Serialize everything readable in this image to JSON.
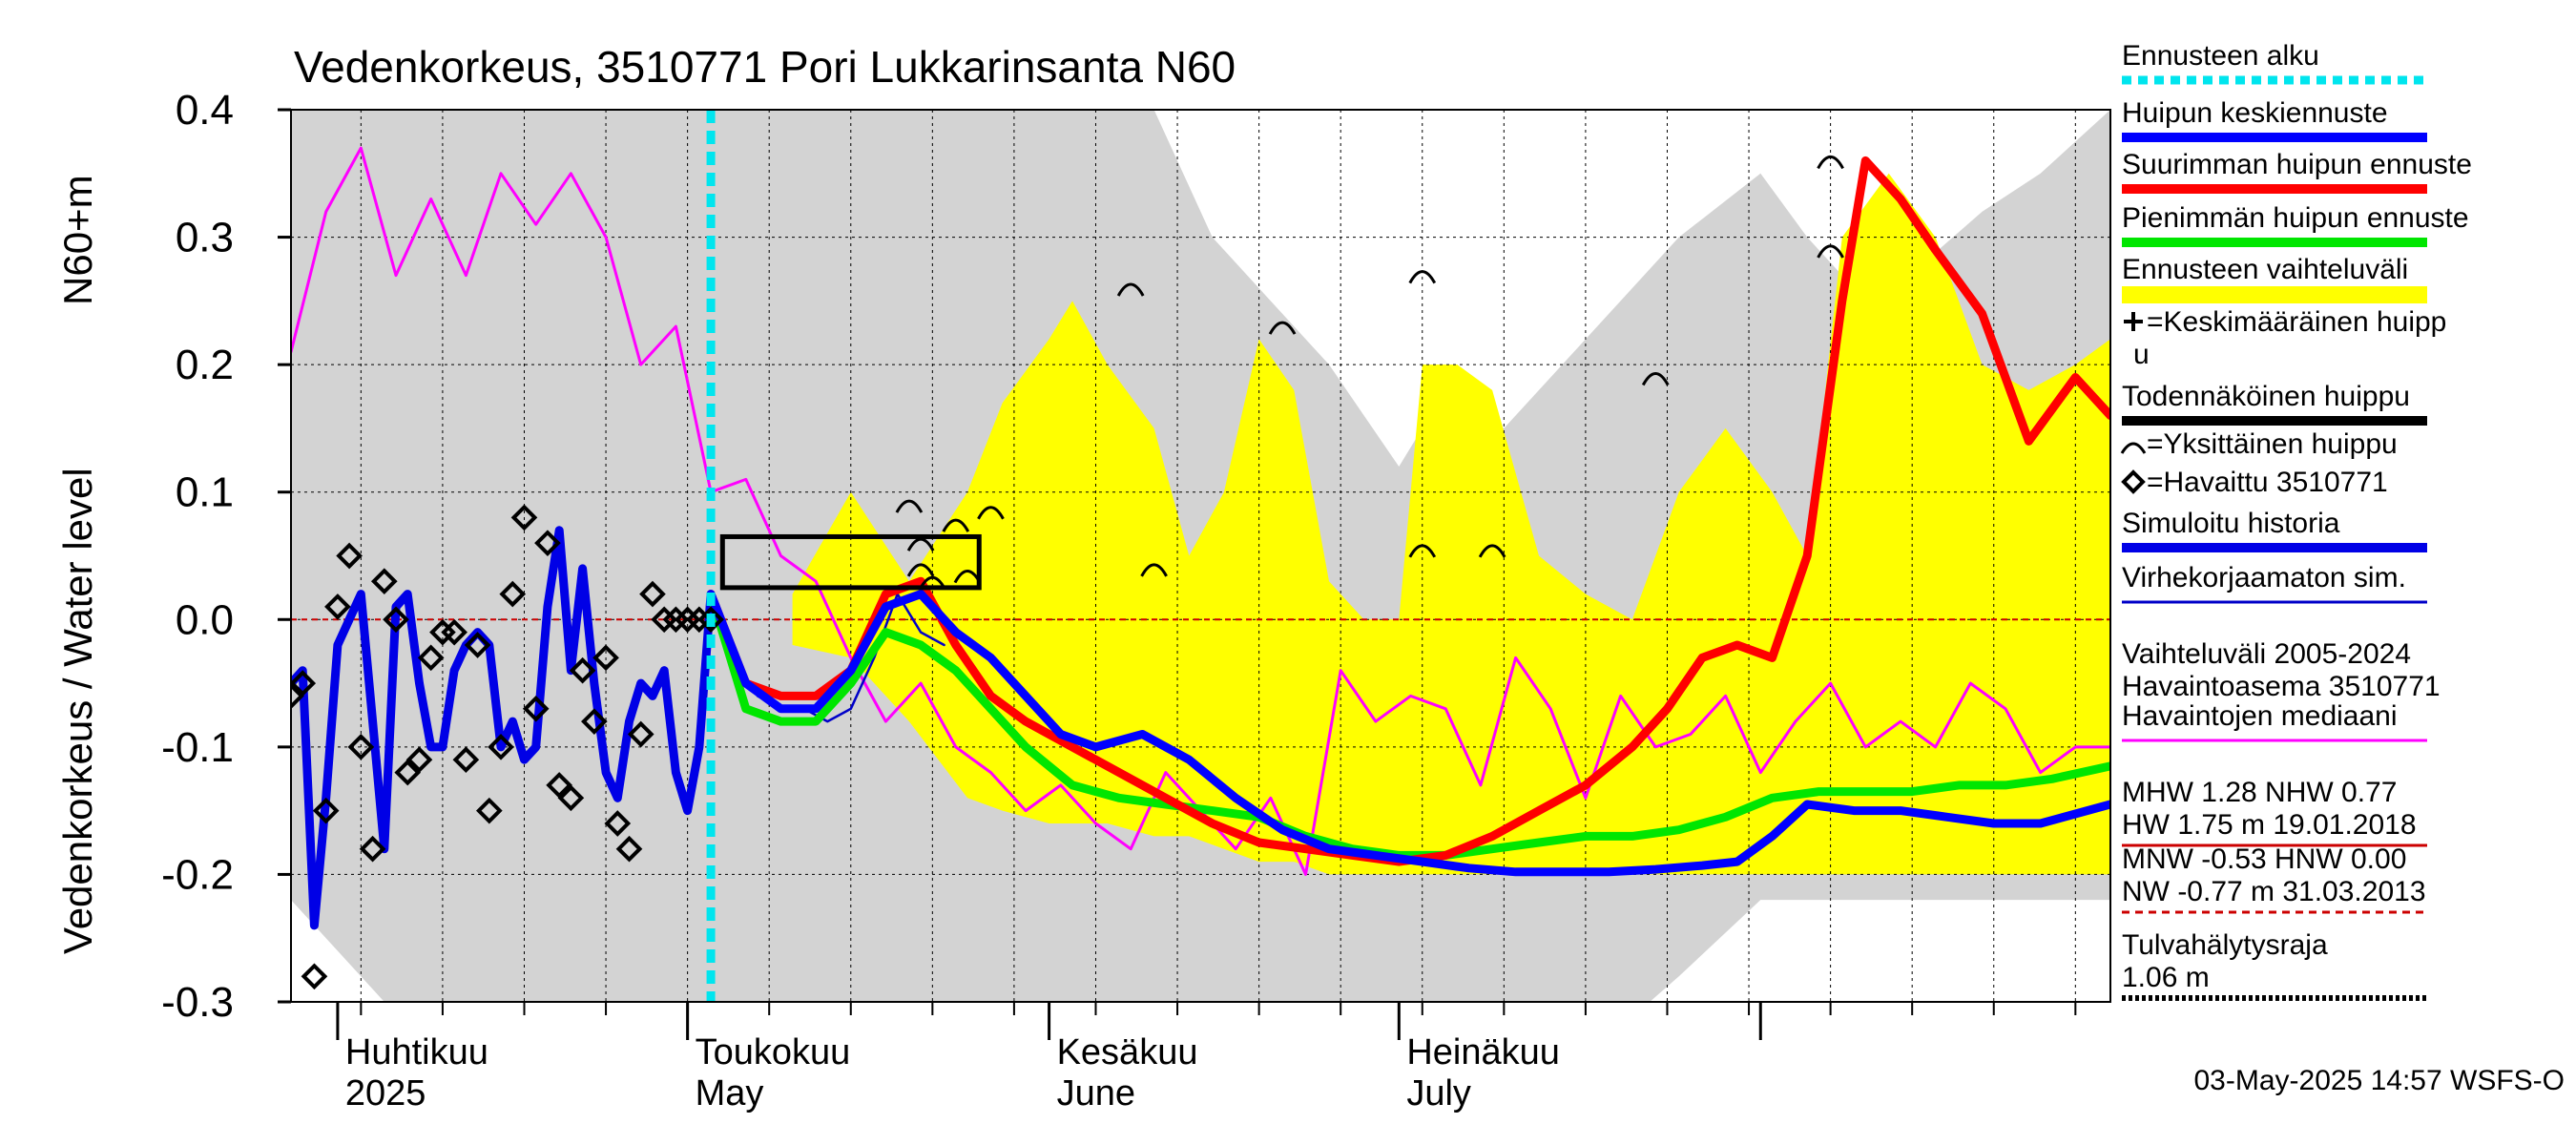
{
  "chart_data": {
    "type": "line",
    "title": "Vedenkorkeus, 3510771 Pori Lukkarinsanta N60",
    "ylabel_outer": "Vedenkorkeus / Water level",
    "ylabel_inner": "N60+m",
    "ylim": [
      -0.3,
      0.4
    ],
    "yticks": [
      "0.4",
      "0.3",
      "0.2",
      "0.1",
      "0.0",
      "-0.1",
      "-0.2",
      "-0.3"
    ],
    "ytick_values": [
      0.4,
      0.3,
      0.2,
      0.1,
      0.0,
      -0.1,
      -0.2,
      -0.3
    ],
    "xlim": [
      "2025-03-28",
      "2025-08-31"
    ],
    "grid": "on",
    "months": [
      {
        "line1": "Huhtikuu",
        "line2": "2025",
        "date": "2025-04-01"
      },
      {
        "line1": "Toukokuu",
        "line2": "May",
        "date": "2025-05-01"
      },
      {
        "line1": "Kesäkuu",
        "line2": "June",
        "date": "2025-06-01"
      },
      {
        "line1": "Heinäkuu",
        "line2": "July",
        "date": "2025-07-01"
      }
    ],
    "forecast_start": "2025-05-03",
    "zero_reference": 0.0,
    "variation_band_2005_2024": {
      "x": [
        "2025-03-28",
        "2025-04-05",
        "2025-04-15",
        "2025-04-25",
        "2025-05-05",
        "2025-05-15",
        "2025-05-25",
        "2025-06-05",
        "2025-06-10",
        "2025-06-15",
        "2025-06-20",
        "2025-06-25",
        "2025-07-01",
        "2025-07-05",
        "2025-07-10",
        "2025-07-15",
        "2025-07-20",
        "2025-07-25",
        "2025-08-01",
        "2025-08-05",
        "2025-08-10",
        "2025-08-15",
        "2025-08-20",
        "2025-08-25",
        "2025-08-31"
      ],
      "upper": [
        0.4,
        0.4,
        0.4,
        0.4,
        0.4,
        0.4,
        0.4,
        0.4,
        0.4,
        0.3,
        0.25,
        0.2,
        0.12,
        0.18,
        0.15,
        0.2,
        0.25,
        0.3,
        0.35,
        0.3,
        0.25,
        0.28,
        0.32,
        0.35,
        0.4
      ],
      "lower": [
        -0.22,
        -0.3,
        -0.32,
        -0.32,
        -0.32,
        -0.32,
        -0.32,
        -0.32,
        -0.32,
        -0.32,
        -0.32,
        -0.32,
        -0.32,
        -0.32,
        -0.32,
        -0.32,
        -0.32,
        -0.28,
        -0.22,
        -0.22,
        -0.22,
        -0.22,
        -0.22,
        -0.22,
        -0.22
      ]
    },
    "forecast_range": {
      "x": [
        "2025-05-10",
        "2025-05-15",
        "2025-05-20",
        "2025-05-25",
        "2025-05-28",
        "2025-06-01",
        "2025-06-03",
        "2025-06-06",
        "2025-06-10",
        "2025-06-13",
        "2025-06-16",
        "2025-06-19",
        "2025-06-22",
        "2025-06-25",
        "2025-06-28",
        "2025-07-01",
        "2025-07-03",
        "2025-07-06",
        "2025-07-09",
        "2025-07-13",
        "2025-07-17",
        "2025-07-21",
        "2025-07-25",
        "2025-07-29",
        "2025-08-02",
        "2025-08-05",
        "2025-08-08",
        "2025-08-12",
        "2025-08-16",
        "2025-08-20",
        "2025-08-24",
        "2025-08-28",
        "2025-08-31"
      ],
      "upper": [
        0.02,
        0.1,
        0.03,
        0.1,
        0.17,
        0.22,
        0.25,
        0.2,
        0.15,
        0.05,
        0.1,
        0.22,
        0.18,
        0.03,
        0.0,
        0.0,
        0.2,
        0.2,
        0.18,
        0.05,
        0.02,
        0.0,
        0.1,
        0.15,
        0.1,
        0.05,
        0.3,
        0.35,
        0.3,
        0.2,
        0.18,
        0.2,
        0.22
      ],
      "lower": [
        -0.02,
        -0.03,
        -0.08,
        -0.14,
        -0.15,
        -0.16,
        -0.16,
        -0.16,
        -0.17,
        -0.17,
        -0.18,
        -0.19,
        -0.19,
        -0.2,
        -0.2,
        -0.2,
        -0.2,
        -0.2,
        -0.2,
        -0.2,
        -0.2,
        -0.2,
        -0.2,
        -0.2,
        -0.2,
        -0.2,
        -0.2,
        -0.2,
        -0.2,
        -0.2,
        -0.2,
        -0.2,
        -0.2
      ]
    },
    "series": [
      {
        "name": "Havaintojen mediaani",
        "color": "#ff00ff",
        "x": [
          "2025-03-28",
          "2025-03-31",
          "2025-04-03",
          "2025-04-06",
          "2025-04-09",
          "2025-04-12",
          "2025-04-15",
          "2025-04-18",
          "2025-04-21",
          "2025-04-24",
          "2025-04-27",
          "2025-04-30",
          "2025-05-03",
          "2025-05-06",
          "2025-05-09",
          "2025-05-12",
          "2025-05-15",
          "2025-05-18",
          "2025-05-21",
          "2025-05-24",
          "2025-05-27",
          "2025-05-30",
          "2025-06-02",
          "2025-06-05",
          "2025-06-08",
          "2025-06-11",
          "2025-06-14",
          "2025-06-17",
          "2025-06-20",
          "2025-06-23",
          "2025-06-26",
          "2025-06-29",
          "2025-07-02",
          "2025-07-05",
          "2025-07-08",
          "2025-07-11",
          "2025-07-14",
          "2025-07-17",
          "2025-07-20",
          "2025-07-23",
          "2025-07-26",
          "2025-07-29",
          "2025-08-01",
          "2025-08-04",
          "2025-08-07",
          "2025-08-10",
          "2025-08-13",
          "2025-08-16",
          "2025-08-19",
          "2025-08-22",
          "2025-08-25",
          "2025-08-28",
          "2025-08-31"
        ],
        "y": [
          0.21,
          0.32,
          0.37,
          0.27,
          0.33,
          0.27,
          0.35,
          0.31,
          0.35,
          0.3,
          0.2,
          0.23,
          0.1,
          0.11,
          0.05,
          0.03,
          -0.03,
          -0.08,
          -0.05,
          -0.1,
          -0.12,
          -0.15,
          -0.13,
          -0.16,
          -0.18,
          -0.12,
          -0.15,
          -0.18,
          -0.14,
          -0.2,
          -0.04,
          -0.08,
          -0.06,
          -0.07,
          -0.13,
          -0.03,
          -0.07,
          -0.14,
          -0.06,
          -0.1,
          -0.09,
          -0.06,
          -0.12,
          -0.08,
          -0.05,
          -0.1,
          -0.08,
          -0.1,
          -0.05,
          -0.07,
          -0.12,
          -0.1,
          -0.1
        ]
      },
      {
        "name": "Simuloitu historia",
        "color": "#0000e6",
        "x": [
          "2025-03-28",
          "2025-03-29",
          "2025-03-30",
          "2025-03-31",
          "2025-04-01",
          "2025-04-02",
          "2025-04-03",
          "2025-04-04",
          "2025-04-05",
          "2025-04-06",
          "2025-04-07",
          "2025-04-08",
          "2025-04-09",
          "2025-04-10",
          "2025-04-11",
          "2025-04-12",
          "2025-04-13",
          "2025-04-14",
          "2025-04-15",
          "2025-04-16",
          "2025-04-17",
          "2025-04-18",
          "2025-04-19",
          "2025-04-20",
          "2025-04-21",
          "2025-04-22",
          "2025-04-23",
          "2025-04-24",
          "2025-04-25",
          "2025-04-26",
          "2025-04-27",
          "2025-04-28",
          "2025-04-29",
          "2025-04-30",
          "2025-05-01",
          "2025-05-02",
          "2025-05-03"
        ],
        "y": [
          -0.05,
          -0.04,
          -0.24,
          -0.14,
          -0.02,
          0.0,
          0.02,
          -0.08,
          -0.18,
          0.01,
          0.02,
          -0.05,
          -0.1,
          -0.1,
          -0.04,
          -0.02,
          -0.01,
          -0.02,
          -0.1,
          -0.08,
          -0.11,
          -0.1,
          0.01,
          0.07,
          -0.04,
          0.04,
          -0.05,
          -0.12,
          -0.14,
          -0.08,
          -0.05,
          -0.06,
          -0.04,
          -0.12,
          -0.15,
          -0.1,
          0.02
        ]
      },
      {
        "name": "Virhekorjaamaton sim.",
        "color": "#0000c8",
        "x": [
          "2025-05-03",
          "2025-05-05",
          "2025-05-07",
          "2025-05-09",
          "2025-05-11",
          "2025-05-13",
          "2025-05-15",
          "2025-05-17",
          "2025-05-19",
          "2025-05-21",
          "2025-05-23"
        ],
        "y": [
          0.02,
          -0.03,
          -0.06,
          -0.07,
          -0.07,
          -0.08,
          -0.07,
          -0.03,
          0.02,
          -0.01,
          -0.02
        ]
      },
      {
        "name": "Pienimmän huipun ennuste",
        "color": "#00e600",
        "x": [
          "2025-05-03",
          "2025-05-06",
          "2025-05-09",
          "2025-05-12",
          "2025-05-15",
          "2025-05-18",
          "2025-05-21",
          "2025-05-24",
          "2025-05-27",
          "2025-05-30",
          "2025-06-03",
          "2025-06-07",
          "2025-06-11",
          "2025-06-15",
          "2025-06-19",
          "2025-06-23",
          "2025-06-27",
          "2025-07-01",
          "2025-07-05",
          "2025-07-09",
          "2025-07-13",
          "2025-07-17",
          "2025-07-21",
          "2025-07-25",
          "2025-07-29",
          "2025-08-02",
          "2025-08-06",
          "2025-08-10",
          "2025-08-14",
          "2025-08-18",
          "2025-08-22",
          "2025-08-26",
          "2025-08-31"
        ],
        "y": [
          0.02,
          -0.07,
          -0.08,
          -0.08,
          -0.05,
          -0.01,
          -0.02,
          -0.04,
          -0.07,
          -0.1,
          -0.13,
          -0.14,
          -0.145,
          -0.15,
          -0.155,
          -0.17,
          -0.18,
          -0.185,
          -0.185,
          -0.18,
          -0.175,
          -0.17,
          -0.17,
          -0.165,
          -0.155,
          -0.14,
          -0.135,
          -0.135,
          -0.135,
          -0.13,
          -0.13,
          -0.125,
          -0.115
        ]
      },
      {
        "name": "Suurimman huipun ennuste",
        "color": "#ff0000",
        "x": [
          "2025-05-03",
          "2025-05-06",
          "2025-05-09",
          "2025-05-12",
          "2025-05-15",
          "2025-05-18",
          "2025-05-21",
          "2025-05-24",
          "2025-05-27",
          "2025-05-30",
          "2025-06-03",
          "2025-06-07",
          "2025-06-11",
          "2025-06-15",
          "2025-06-19",
          "2025-06-23",
          "2025-06-27",
          "2025-07-01",
          "2025-07-05",
          "2025-07-09",
          "2025-07-13",
          "2025-07-17",
          "2025-07-21",
          "2025-07-24",
          "2025-07-27",
          "2025-07-30",
          "2025-08-02",
          "2025-08-05",
          "2025-08-08",
          "2025-08-10",
          "2025-08-13",
          "2025-08-16",
          "2025-08-20",
          "2025-08-24",
          "2025-08-28",
          "2025-08-31"
        ],
        "y": [
          0.02,
          -0.05,
          -0.06,
          -0.06,
          -0.04,
          0.02,
          0.03,
          -0.02,
          -0.06,
          -0.08,
          -0.1,
          -0.12,
          -0.14,
          -0.16,
          -0.175,
          -0.18,
          -0.185,
          -0.19,
          -0.185,
          -0.17,
          -0.15,
          -0.13,
          -0.1,
          -0.07,
          -0.03,
          -0.02,
          -0.03,
          0.05,
          0.25,
          0.36,
          0.33,
          0.29,
          0.24,
          0.14,
          0.19,
          0.16
        ]
      },
      {
        "name": "Huipun keskiennuste",
        "color": "#0000ff",
        "x": [
          "2025-05-03",
          "2025-05-06",
          "2025-05-09",
          "2025-05-12",
          "2025-05-15",
          "2025-05-18",
          "2025-05-21",
          "2025-05-24",
          "2025-05-27",
          "2025-05-30",
          "2025-06-02",
          "2025-06-05",
          "2025-06-09",
          "2025-06-13",
          "2025-06-17",
          "2025-06-21",
          "2025-06-25",
          "2025-06-29",
          "2025-07-03",
          "2025-07-07",
          "2025-07-11",
          "2025-07-15",
          "2025-07-19",
          "2025-07-23",
          "2025-07-27",
          "2025-07-30",
          "2025-08-02",
          "2025-08-05",
          "2025-08-09",
          "2025-08-13",
          "2025-08-17",
          "2025-08-21",
          "2025-08-25",
          "2025-08-31"
        ],
        "y": [
          0.02,
          -0.05,
          -0.07,
          -0.07,
          -0.04,
          0.01,
          0.02,
          -0.01,
          -0.03,
          -0.06,
          -0.09,
          -0.1,
          -0.09,
          -0.11,
          -0.14,
          -0.165,
          -0.18,
          -0.185,
          -0.19,
          -0.195,
          -0.198,
          -0.198,
          -0.198,
          -0.196,
          -0.193,
          -0.19,
          -0.17,
          -0.145,
          -0.15,
          -0.15,
          -0.155,
          -0.16,
          -0.16,
          -0.145
        ]
      }
    ],
    "observed": {
      "name": "Havaittu 3510771",
      "x": [
        "2025-03-28",
        "2025-03-29",
        "2025-03-30",
        "2025-03-31",
        "2025-04-01",
        "2025-04-02",
        "2025-04-03",
        "2025-04-04",
        "2025-04-05",
        "2025-04-06",
        "2025-04-07",
        "2025-04-08",
        "2025-04-09",
        "2025-04-10",
        "2025-04-11",
        "2025-04-12",
        "2025-04-13",
        "2025-04-14",
        "2025-04-15",
        "2025-04-16",
        "2025-04-17",
        "2025-04-18",
        "2025-04-19",
        "2025-04-20",
        "2025-04-21",
        "2025-04-22",
        "2025-04-23",
        "2025-04-24",
        "2025-04-25",
        "2025-04-26",
        "2025-04-27",
        "2025-04-28",
        "2025-04-29",
        "2025-04-30",
        "2025-05-01",
        "2025-05-02",
        "2025-05-03"
      ],
      "y": [
        -0.06,
        -0.05,
        -0.28,
        -0.15,
        0.01,
        0.05,
        -0.1,
        -0.18,
        0.03,
        0.0,
        -0.12,
        -0.11,
        -0.03,
        -0.01,
        -0.01,
        -0.11,
        -0.02,
        -0.15,
        -0.1,
        0.02,
        0.08,
        -0.07,
        0.06,
        -0.13,
        -0.14,
        -0.04,
        -0.08,
        -0.03,
        -0.16,
        -0.18,
        -0.09,
        0.02,
        0.0,
        0.0,
        0.0,
        0.0,
        0.0
      ]
    },
    "probable_peak_box": {
      "x0": "2025-05-04",
      "x1": "2025-05-26",
      "y0": 0.025,
      "y1": 0.065
    },
    "individual_peaks": [
      {
        "x": "2025-05-20",
        "y": 0.09
      },
      {
        "x": "2025-05-21",
        "y": 0.06
      },
      {
        "x": "2025-05-21",
        "y": 0.04
      },
      {
        "x": "2025-05-22",
        "y": 0.03
      },
      {
        "x": "2025-05-24",
        "y": 0.075
      },
      {
        "x": "2025-05-25",
        "y": 0.035
      },
      {
        "x": "2025-05-27",
        "y": 0.085
      },
      {
        "x": "2025-06-08",
        "y": 0.26
      },
      {
        "x": "2025-06-10",
        "y": 0.04
      },
      {
        "x": "2025-06-21",
        "y": 0.23
      },
      {
        "x": "2025-07-03",
        "y": 0.27
      },
      {
        "x": "2025-07-03",
        "y": 0.055
      },
      {
        "x": "2025-07-09",
        "y": 0.055
      },
      {
        "x": "2025-07-23",
        "y": 0.19
      },
      {
        "x": "2025-08-07",
        "y": 0.36
      },
      {
        "x": "2025-08-07",
        "y": 0.29
      }
    ],
    "legend": [
      {
        "label": "Ennusteen alku",
        "color": "#00e5ee",
        "style": "dotted-thick"
      },
      {
        "label": "Huipun keskiennuste",
        "color": "#0000ff",
        "style": "solid-thick"
      },
      {
        "label": "Suurimman huipun ennuste",
        "color": "#ff0000",
        "style": "solid-thick"
      },
      {
        "label": "Pienimmän huipun ennuste",
        "color": "#00e600",
        "style": "solid-thick"
      },
      {
        "label": "Ennusteen vaihteluväli",
        "color": "#ffff00",
        "style": "band"
      },
      {
        "label_line1": "=Keskimääräinen huipp",
        "label_line2": "u",
        "style": "plus"
      },
      {
        "label": "Todennäköinen huippu",
        "color": "#000000",
        "style": "solid-thick"
      },
      {
        "label": "=Yksittäinen huippu",
        "style": "arc"
      },
      {
        "label": "=Havaittu 3510771",
        "style": "diamond"
      },
      {
        "label": "Simuloitu historia",
        "color": "#0000e6",
        "style": "solid-thick"
      },
      {
        "label": "Virhekorjaamaton sim.",
        "color": "#0000c8",
        "style": "solid-thin"
      },
      {
        "label_line1": "Vaihteluväli 2005-2024",
        "label_line2": " Havaintoasema 3510771",
        "color": "#d3d3d3",
        "style": "band"
      },
      {
        "label": "Havaintojen mediaani",
        "color": "#ff00ff",
        "style": "solid-thin"
      },
      {
        "label_line1": "MHW   1.28 NHW   0.77",
        "label_line2": "HW   1.75 m 19.01.2018",
        "color": "#cc0000",
        "style": "solid-thin"
      },
      {
        "label_line1": "MNW  -0.53 HNW   0.00",
        "label_line2": "NW  -0.77 m 31.03.2013",
        "color": "#cc0000",
        "style": "dashed"
      },
      {
        "label_line1": "Tulvahälytysraja",
        "label_line2": " 1.06 m",
        "color": "#000000",
        "style": "dotted"
      }
    ],
    "footer": "03-May-2025 14:57 WSFS-O"
  }
}
